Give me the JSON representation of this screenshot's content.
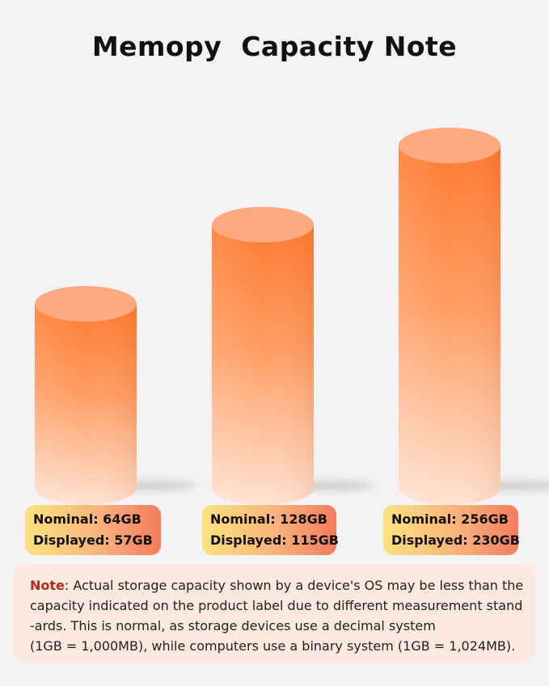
{
  "title": "Memopy  Capacity Note",
  "colors": {
    "cylinder_top": "#ff7a30",
    "cylinder_bottom": "#ffe2d2",
    "label_left": "#fde37e",
    "label_right": "#f47c5e",
    "note_bg": "#fbe8df",
    "note_accent": "#b3291d"
  },
  "chart_data": {
    "type": "bar",
    "categories": [
      "64GB",
      "128GB",
      "256GB"
    ],
    "series": [
      {
        "name": "Nominal",
        "values": [
          64,
          128,
          256
        ]
      },
      {
        "name": "Displayed",
        "values": [
          57,
          115,
          230
        ]
      }
    ],
    "title": "Memopy  Capacity Note",
    "xlabel": "",
    "ylabel": "",
    "grid": false
  },
  "labels": [
    {
      "nominal": "Nominal: 64GB",
      "displayed": "Displayed: 57GB"
    },
    {
      "nominal": "Nominal: 128GB",
      "displayed": "Displayed: 115GB"
    },
    {
      "nominal": "Nominal: 256GB",
      "displayed": "Displayed: 230GB"
    }
  ],
  "note": {
    "heading": "Note",
    "line1": ": Actual storage capacity shown by a device's OS may be less than  the",
    "line2": "capacity indicated on the product label due to different measurement stand",
    "line3": "-ards. This is normal, as storage devices use a decimal system",
    "line4": "(1GB = 1,000MB), while computers use a binary system (1GB = 1,024MB)."
  }
}
